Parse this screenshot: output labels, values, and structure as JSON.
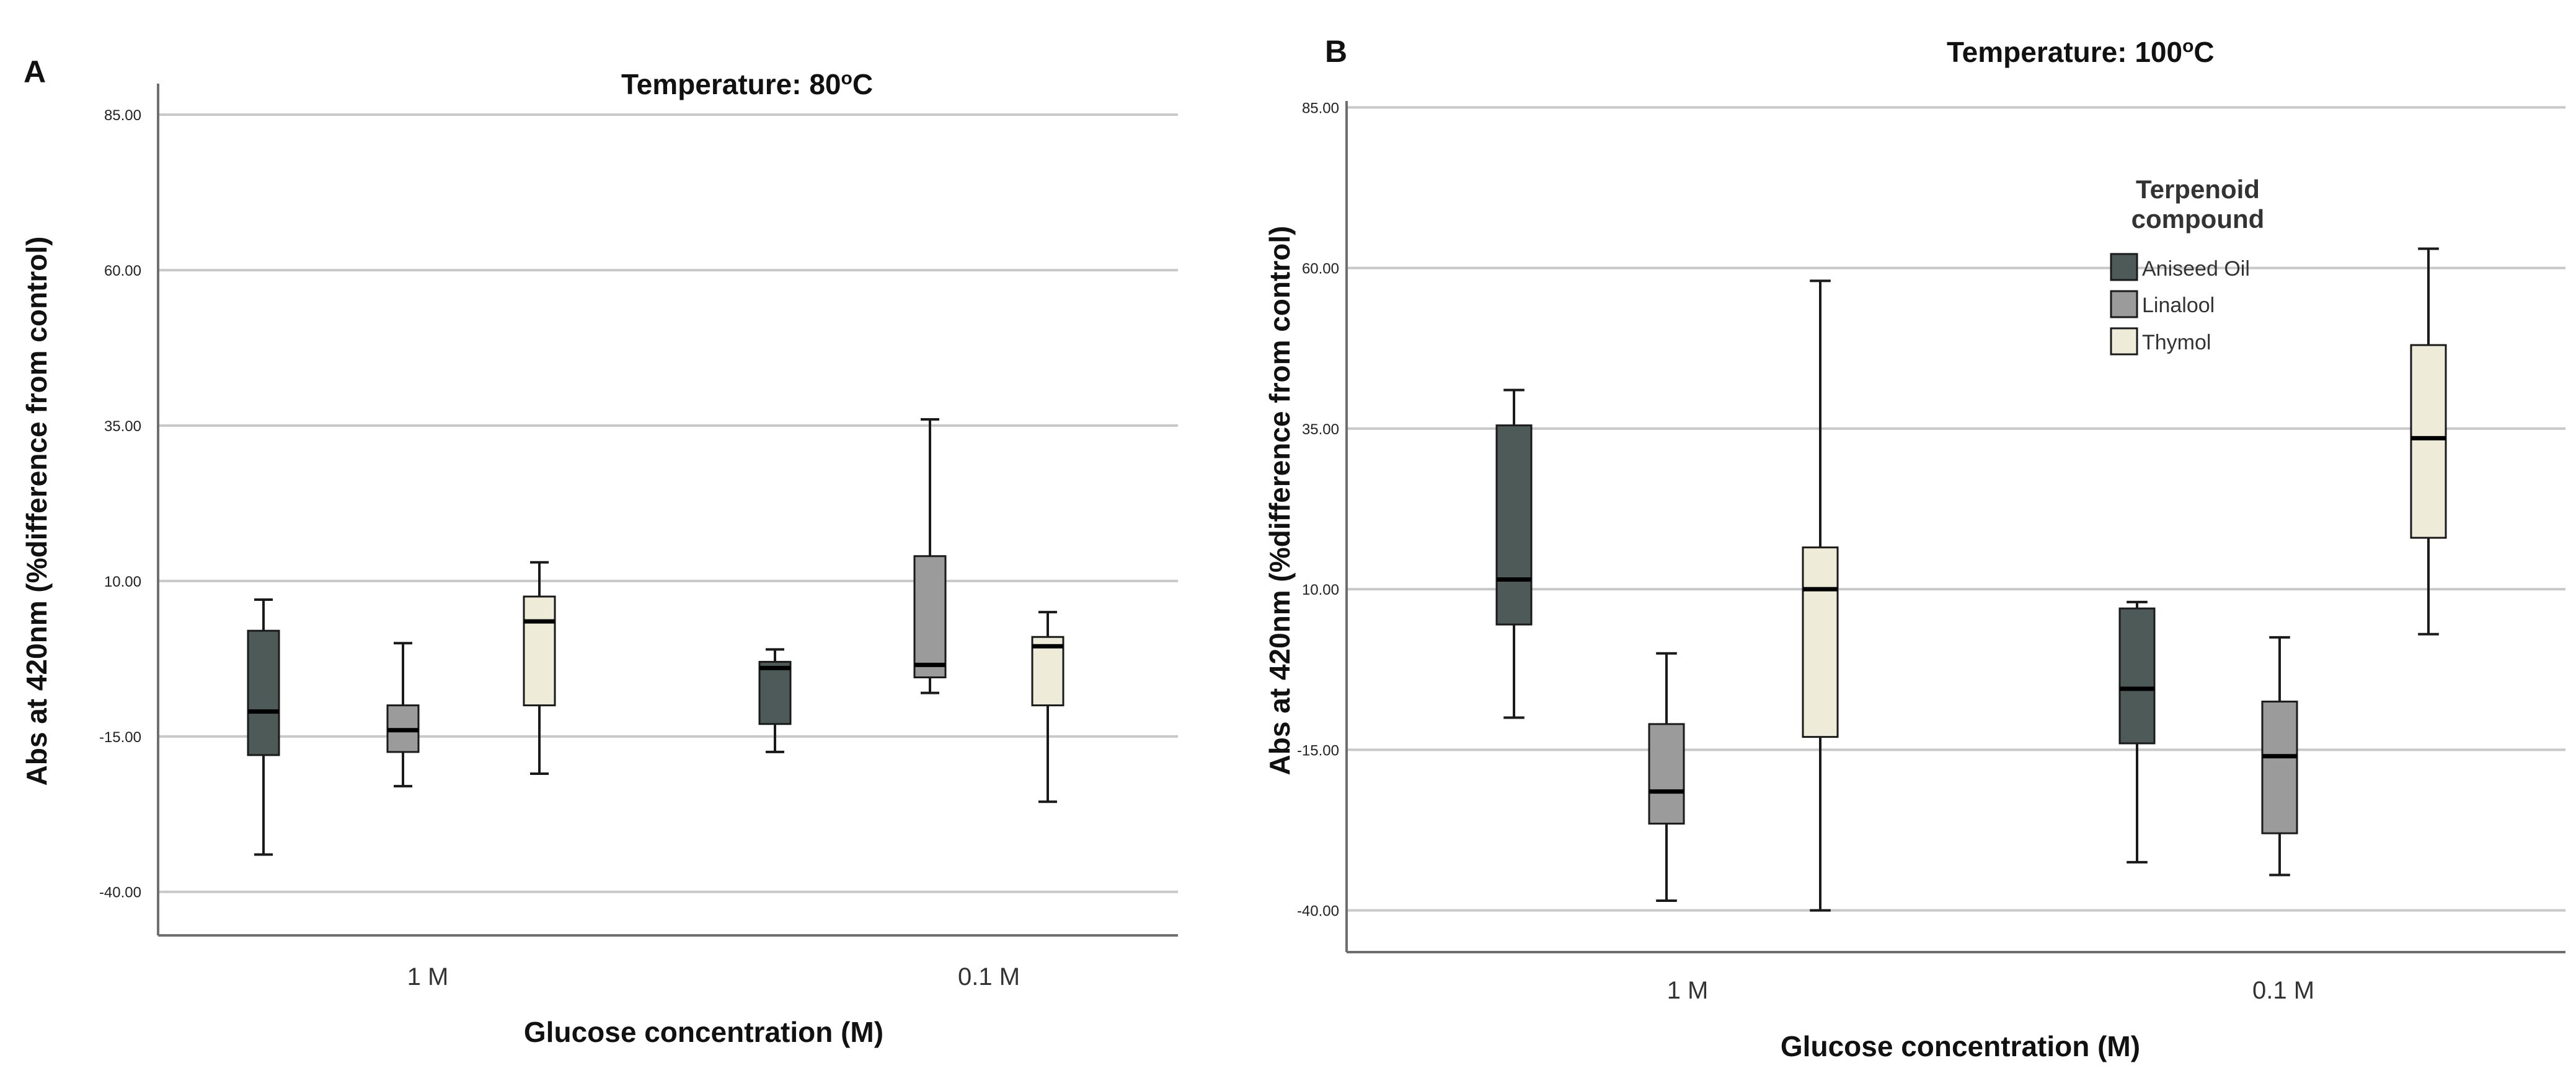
{
  "chart_data": [
    {
      "type": "box",
      "panel_label": "A",
      "title": "Temperature: 80",
      "title_superscript": "o",
      "title_suffix": "C",
      "xlabel": "Glucose concentration (M)",
      "ylabel": "Abs at 420nm (%difference from control)",
      "ylim": [
        -47,
        90
      ],
      "yticks": [
        85,
        60,
        35,
        10,
        -15,
        -40
      ],
      "ytick_labels": [
        "85.00",
        "60.00",
        "35.00",
        "10.00",
        "-15.00",
        "-40.00"
      ],
      "grid": true,
      "categories": [
        "1 M",
        "0.1 M"
      ],
      "series": [
        {
          "name": "Aniseed Oil",
          "color": "#4d5a58",
          "boxes": [
            {
              "min": -34,
              "q1": -18,
              "median": -11,
              "q3": 2,
              "max": 7
            },
            {
              "min": -17.5,
              "q1": -13,
              "median": -4,
              "q3": -3,
              "max": -1
            }
          ]
        },
        {
          "name": "Linalool",
          "color": "#9b9b9b",
          "boxes": [
            {
              "min": -23,
              "q1": -17.5,
              "median": -14,
              "q3": -10,
              "max": 0
            },
            {
              "min": -8,
              "q1": -5.5,
              "median": -3.5,
              "q3": 14,
              "max": 36
            }
          ]
        },
        {
          "name": "Thymol",
          "color": "#efebd9",
          "boxes": [
            {
              "min": -21,
              "q1": -10,
              "median": 3.5,
              "q3": 7.5,
              "max": 13
            },
            {
              "min": -25.5,
              "q1": -10,
              "median": -0.5,
              "q3": 1,
              "max": 5
            }
          ]
        }
      ]
    },
    {
      "type": "box",
      "panel_label": "B",
      "title": "Temperature: 100",
      "title_superscript": "o",
      "title_suffix": "C",
      "xlabel": "Glucose concentration (M)",
      "ylabel": "Abs at 420nm (%difference from control)",
      "ylim": [
        -46.5,
        86
      ],
      "yticks": [
        85,
        60,
        35,
        10,
        -15,
        -40
      ],
      "ytick_labels": [
        "85.00",
        "60.00",
        "35.00",
        "10.00",
        "-15.00",
        "-40.00"
      ],
      "grid": true,
      "categories": [
        "1 M",
        "0.1 M"
      ],
      "series": [
        {
          "name": "Aniseed Oil",
          "color": "#4d5a58",
          "boxes": [
            {
              "min": -10,
              "q1": 4.5,
              "median": 11.5,
              "q3": 35.5,
              "max": 41
            },
            {
              "min": -32.5,
              "q1": -14,
              "median": -5.5,
              "q3": 7,
              "max": 8
            }
          ]
        },
        {
          "name": "Linalool",
          "color": "#9b9b9b",
          "boxes": [
            {
              "min": -38.5,
              "q1": -26.5,
              "median": -21.5,
              "q3": -11,
              "max": 0
            },
            {
              "min": -34.5,
              "q1": -28,
              "median": -16,
              "q3": -7.5,
              "max": 2.5
            }
          ]
        },
        {
          "name": "Thymol",
          "color": "#efebd9",
          "boxes": [
            {
              "min": -40,
              "q1": -13,
              "median": 10,
              "q3": 16.5,
              "max": 58
            },
            {
              "min": 3,
              "q1": 18,
              "median": 33.5,
              "q3": 48,
              "max": 63
            }
          ]
        }
      ],
      "legend": {
        "title_line1": "Terpenoid",
        "title_line2": "compound",
        "items": [
          "Aniseed Oil",
          "Linalool",
          "Thymol"
        ],
        "position": "top-right"
      }
    }
  ]
}
